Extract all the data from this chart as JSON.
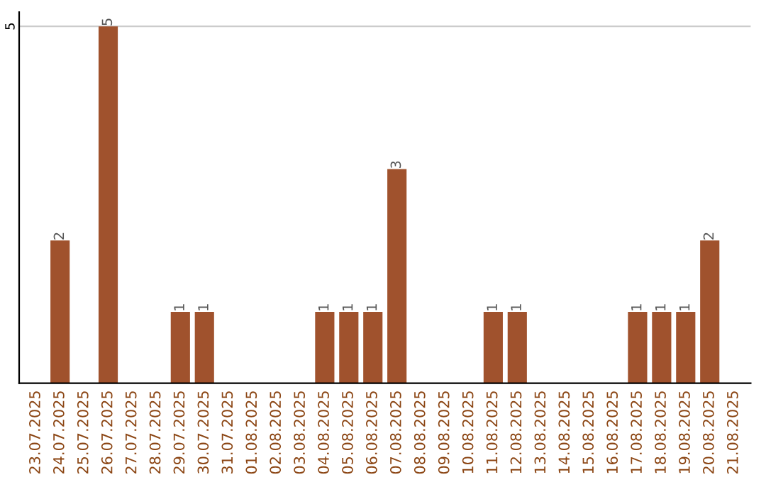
{
  "chart_data": {
    "type": "bar",
    "categories": [
      "23.07.2025",
      "24.07.2025",
      "25.07.2025",
      "26.07.2025",
      "27.07.2025",
      "28.07.2025",
      "29.07.2025",
      "30.07.2025",
      "31.07.2025",
      "01.08.2025",
      "02.08.2025",
      "03.08.2025",
      "04.08.2025",
      "05.08.2025",
      "06.08.2025",
      "07.08.2025",
      "08.08.2025",
      "09.08.2025",
      "10.08.2025",
      "11.08.2025",
      "12.08.2025",
      "13.08.2025",
      "14.08.2025",
      "15.08.2025",
      "16.08.2025",
      "17.08.2025",
      "18.08.2025",
      "19.08.2025",
      "20.08.2025",
      "21.08.2025"
    ],
    "values": [
      0,
      2,
      0,
      5,
      0,
      0,
      1,
      1,
      0,
      0,
      0,
      0,
      1,
      1,
      1,
      3,
      0,
      0,
      0,
      1,
      1,
      0,
      0,
      0,
      0,
      1,
      1,
      1,
      2,
      0
    ],
    "value_labels": [
      null,
      "2",
      null,
      "5",
      null,
      null,
      "1",
      "1",
      null,
      null,
      null,
      null,
      "1",
      "1",
      "1",
      "3",
      null,
      null,
      null,
      "1",
      "1",
      null,
      null,
      null,
      null,
      "1",
      "1",
      "1",
      "2",
      null
    ],
    "color": "#a0522d",
    "ylim": [
      0,
      5.2
    ],
    "yticks": [
      5
    ],
    "grid": "y"
  }
}
